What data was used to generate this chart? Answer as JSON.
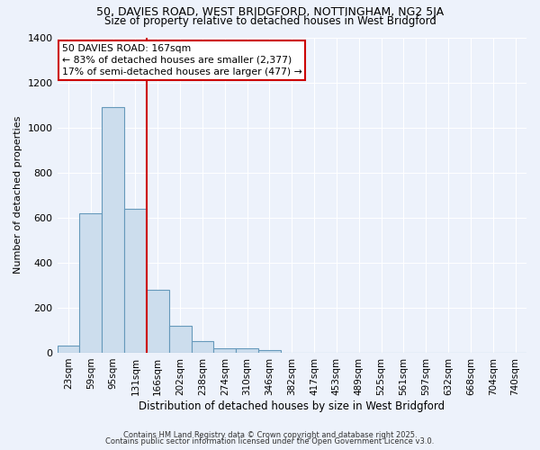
{
  "title_line1": "50, DAVIES ROAD, WEST BRIDGFORD, NOTTINGHAM, NG2 5JA",
  "title_line2": "Size of property relative to detached houses in West Bridgford",
  "xlabel": "Distribution of detached houses by size in West Bridgford",
  "ylabel": "Number of detached properties",
  "annotation_title": "50 DAVIES ROAD: 167sqm",
  "annotation_line2": "← 83% of detached houses are smaller (2,377)",
  "annotation_line3": "17% of semi-detached houses are larger (477) →",
  "bar_labels": [
    "23sqm",
    "59sqm",
    "95sqm",
    "131sqm",
    "166sqm",
    "202sqm",
    "238sqm",
    "274sqm",
    "310sqm",
    "346sqm",
    "382sqm",
    "417sqm",
    "453sqm",
    "489sqm",
    "525sqm",
    "561sqm",
    "597sqm",
    "632sqm",
    "668sqm",
    "704sqm",
    "740sqm"
  ],
  "bar_values": [
    30,
    620,
    1090,
    640,
    280,
    120,
    50,
    20,
    20,
    10,
    0,
    0,
    0,
    0,
    0,
    0,
    0,
    0,
    0,
    0,
    0
  ],
  "bar_color": "#ccdded",
  "bar_edge_color": "#6699bb",
  "red_line_x": 3.5,
  "ylim": [
    0,
    1400
  ],
  "yticks": [
    0,
    200,
    400,
    600,
    800,
    1000,
    1200,
    1400
  ],
  "background_color": "#edf2fb",
  "grid_color": "#ffffff",
  "annotation_box_color": "#ffffff",
  "annotation_box_edge": "#cc0000",
  "red_line_color": "#cc0000",
  "footer_line1": "Contains HM Land Registry data © Crown copyright and database right 2025.",
  "footer_line2": "Contains public sector information licensed under the Open Government Licence v3.0."
}
